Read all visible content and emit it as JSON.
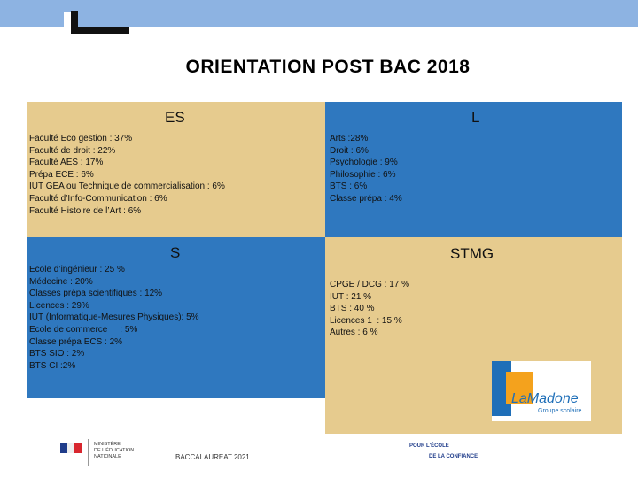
{
  "header": {
    "title": "ORIENTATION POST BAC 2018"
  },
  "sections": [
    {
      "title": "ES",
      "items": [
        "Faculté Eco gestion : 37%",
        "Faculté de droit : 22%",
        "Faculté AES : 17%",
        "Prépa ECE : 6%",
        "IUT GEA ou Technique de commercialisation : 6%",
        "Faculté d’Info-Communication : 6%",
        "Faculté Histoire de l’Art : 6%"
      ]
    },
    {
      "title": "L",
      "items": [
        "Arts :28%",
        "Droit : 6%",
        "Psychologie : 9%",
        "Philosophie : 6%",
        "BTS : 6%",
        "Classe prépa : 4%"
      ]
    },
    {
      "title": "S",
      "items": [
        "Ecole d’ingénieur : 25 %",
        "Médecine : 20%",
        "Classes prépa scientifiques : 12%",
        "Licences : 29%",
        "IUT (Informatique-Mesures Physiques): 5%",
        "Ecole de commerce     : 5%",
        "Classe prépa ECS : 2%",
        "BTS SIO : 2%",
        "BTS CI :2%"
      ]
    },
    {
      "title": "STMG",
      "items": [
        "CPGE / DCG : 17 %",
        "IUT : 21 %",
        "BTS : 40 %",
        "Licences 1  : 15 %",
        "Autres : 6 %"
      ]
    }
  ],
  "logo": {
    "name": "LaMadone",
    "subtitle": "Groupe scolaire"
  },
  "footer": {
    "ministry": [
      "MINISTÈRE",
      "DE L'ÉDUCATION",
      "NATIONALE"
    ],
    "center": "BACCALAUREAT 2021",
    "slogan": [
      "POUR L'ÉCOLE",
      "DE LA CONFIANCE"
    ]
  }
}
